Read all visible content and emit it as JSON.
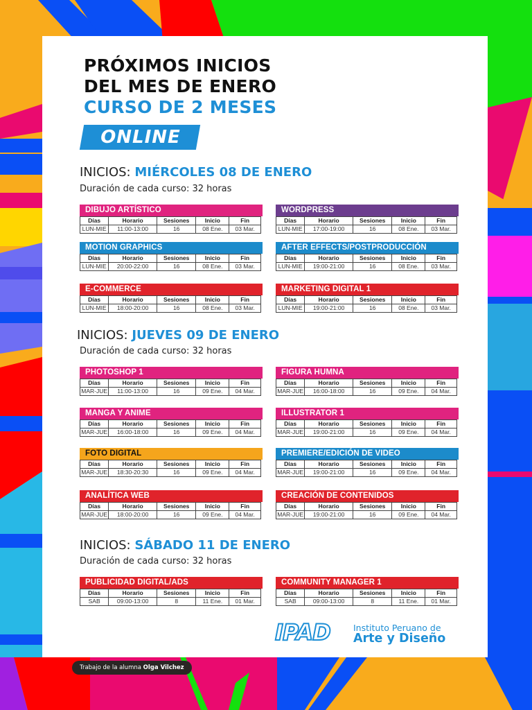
{
  "colors": {
    "accent_blue": "#1e8fd6",
    "magenta": "#e0237f",
    "purple": "#6c3d8e",
    "blue": "#1c8bcb",
    "red": "#e0232b",
    "orange": "#f5a51c"
  },
  "header": {
    "line1": "PRÓXIMOS INICIOS",
    "line2": "DEL MES DE ENERO",
    "line3": "CURSO DE 2 MESES",
    "badge": "ONLINE"
  },
  "table_headers": [
    "Días",
    "Horario",
    "Sesiones",
    "Inicio",
    "Fin"
  ],
  "sections": [
    {
      "label": "INICIOS: ",
      "date": "MIÉRCOLES 08 DE ENERO",
      "duration": "Duración de cada curso: 32 horas",
      "courses": [
        {
          "name": "DIBUJO ARTÍSTICO",
          "color": "#e0237f",
          "dias": "LUN-MIE",
          "horario": "11:00-13:00",
          "sesiones": "16",
          "inicio": "08 Ene.",
          "fin": "03 Mar."
        },
        {
          "name": "WORDPRESS",
          "color": "#6c3d8e",
          "dias": "LUN-MIE",
          "horario": "17:00-19:00",
          "sesiones": "16",
          "inicio": "08 Ene.",
          "fin": "03 Mar."
        },
        {
          "name": "MOTION GRAPHICS",
          "color": "#1c8bcb",
          "dias": "LUN-MIE",
          "horario": "20:00-22:00",
          "sesiones": "16",
          "inicio": "08 Ene.",
          "fin": "03 Mar."
        },
        {
          "name": "AFTER EFFECTS/POSTPRODUCCIÓN",
          "color": "#1c8bcb",
          "dias": "LUN-MIE",
          "horario": "19:00-21:00",
          "sesiones": "16",
          "inicio": "08 Ene.",
          "fin": "03 Mar."
        },
        {
          "name": "E-COMMERCE",
          "color": "#e0232b",
          "dias": "LUN-MIE",
          "horario": "18:00-20:00",
          "sesiones": "16",
          "inicio": "08 Ene.",
          "fin": "03 Mar."
        },
        {
          "name": "MARKETING DIGITAL 1",
          "color": "#e0232b",
          "dias": "LUN-MIE",
          "horario": "19:00-21:00",
          "sesiones": "16",
          "inicio": "08 Ene.",
          "fin": "03 Mar."
        }
      ]
    },
    {
      "label": "INICIOS: ",
      "date": "JUEVES 09 DE ENERO",
      "duration": "Duración de cada curso: 32 horas",
      "courses": [
        {
          "name": "PHOTOSHOP 1",
          "color": "#e0237f",
          "dias": "MAR-JUE",
          "horario": "11:00-13:00",
          "sesiones": "16",
          "inicio": "09 Ene.",
          "fin": "04 Mar."
        },
        {
          "name": "FIGURA HUMNA",
          "color": "#e0237f",
          "dias": "MAR-JUE",
          "horario": "16:00-18:00",
          "sesiones": "16",
          "inicio": "09 Ene.",
          "fin": "04 Mar."
        },
        {
          "name": "MANGA Y ANIME",
          "color": "#e0237f",
          "dias": "MAR-JUE",
          "horario": "16:00-18:00",
          "sesiones": "16",
          "inicio": "09 Ene.",
          "fin": "04 Mar."
        },
        {
          "name": "ILLUSTRATOR 1",
          "color": "#e0237f",
          "dias": "MAR-JUE",
          "horario": "19:00-21:00",
          "sesiones": "16",
          "inicio": "09 Ene.",
          "fin": "04 Mar."
        },
        {
          "name": "FOTO DIGITAL",
          "color": "#f5a51c",
          "dias": "MAR-JUE",
          "horario": "18:30-20:30",
          "sesiones": "16",
          "inicio": "09 Ene.",
          "fin": "04 Mar."
        },
        {
          "name": "PREMIERE/EDICIÓN DE VIDEO",
          "color": "#1c8bcb",
          "dias": "MAR-JUE",
          "horario": "19:00-21:00",
          "sesiones": "16",
          "inicio": "09 Ene.",
          "fin": "04 Mar."
        },
        {
          "name": "ANALÍTICA WEB",
          "color": "#e0232b",
          "dias": "MAR-JUE",
          "horario": "18:00-20:00",
          "sesiones": "16",
          "inicio": "09 Ene.",
          "fin": "04 Mar."
        },
        {
          "name": "CREACIÓN DE CONTENIDOS",
          "color": "#e0232b",
          "dias": "MAR-JUE",
          "horario": "19:00-21:00",
          "sesiones": "16",
          "inicio": "09 Ene.",
          "fin": "04 Mar."
        }
      ]
    },
    {
      "label": "INICIOS: ",
      "date": "SÁBADO 11 DE ENERO",
      "duration": "Duración de cada curso: 32 horas",
      "courses": [
        {
          "name": "PUBLICIDAD DIGITAL/ADS",
          "color": "#e0232b",
          "dias": "SAB",
          "horario": "09:00-13:00",
          "sesiones": "8",
          "inicio": "11 Ene.",
          "fin": "01 Mar."
        },
        {
          "name": "COMMUNITY MANAGER 1",
          "color": "#e0232b",
          "dias": "SAB",
          "horario": "09:00-13:00",
          "sesiones": "8",
          "inicio": "11 Ene.",
          "fin": "01 Mar."
        }
      ]
    }
  ],
  "logo": {
    "mark": "IPAD",
    "line1": "Instituto Peruano de",
    "line2": "Arte y Diseño"
  },
  "credit": {
    "prefix": "Trabajo de la alumna ",
    "name": "Olga Vilchez"
  }
}
